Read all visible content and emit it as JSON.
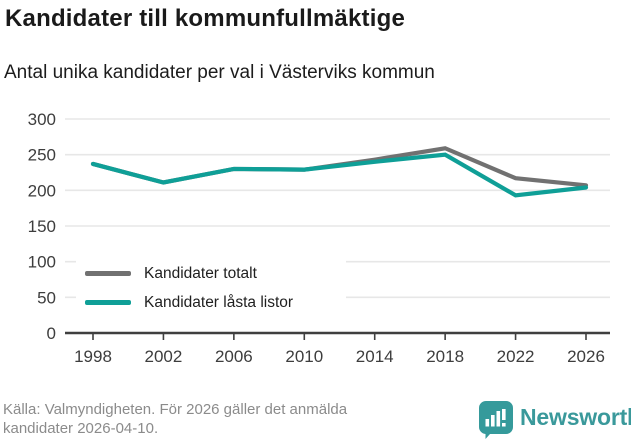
{
  "header": {
    "title": "Kandidater till kommunfullmäktige",
    "subtitle": "Antal unika kandidater per val i Västerviks kommun"
  },
  "chart_data": {
    "type": "line",
    "categories": [
      "1998",
      "2002",
      "2006",
      "2010",
      "2014",
      "2018",
      "2022",
      "2026"
    ],
    "series": [
      {
        "name": "Kandidater totalt",
        "color": "#717171",
        "values": [
          237,
          211,
          230,
          229,
          243,
          259,
          217,
          207
        ]
      },
      {
        "name": "Kandidater låsta listor",
        "color": "#0f9f97",
        "values": [
          237,
          211,
          230,
          229,
          240,
          250,
          193,
          204
        ]
      }
    ],
    "title": "Kandidater till kommunfullmäktige",
    "subtitle": "Antal unika kandidater per val i Västerviks kommun",
    "xlabel": "",
    "ylabel": "",
    "ylim": [
      0,
      300
    ],
    "ytick_step": 50,
    "yticks": [
      0,
      50,
      100,
      150,
      200,
      250,
      300
    ],
    "grid": true,
    "gridline_color": "#e7e7e7",
    "axis_color": "#3f3f3f",
    "tick_label_color": "#3d3d3d",
    "legend_position": "inside-bottom-left"
  },
  "footer": {
    "source": "Källa: Valmyndigheten. För 2026 gäller det anmälda kandidater 2026-04-10.",
    "brand": "Newsworthy",
    "brand_color": "#3a999b"
  }
}
